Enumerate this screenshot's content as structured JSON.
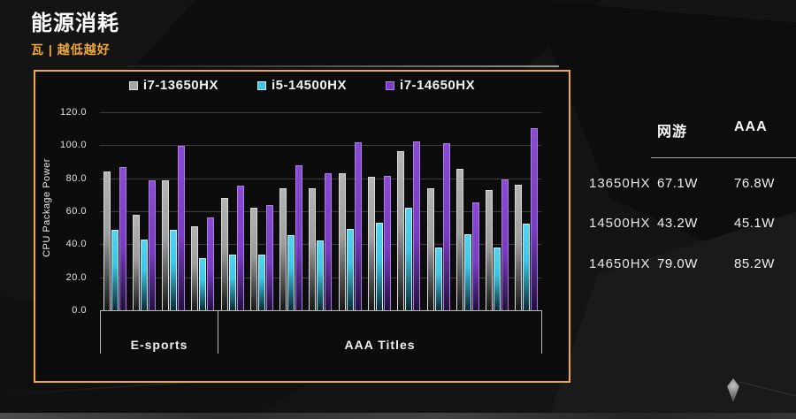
{
  "title": "能源消耗",
  "subtitle": "瓦 | 越低越好",
  "colors": {
    "accent_gold": "#EFA93C",
    "bar_gray": "#A6A6A6",
    "bar_cyan": "#3FC6E6",
    "bar_purple": "#7A3CC2",
    "panel_background": "#0C0C0C",
    "page_background": "#141414"
  },
  "chart_data": {
    "type": "bar",
    "title": "",
    "xlabel": "",
    "ylabel": "CPU Package Power",
    "ylim": [
      0,
      120
    ],
    "ytick_labels": [
      "120.0",
      "100.0",
      "80.0",
      "60.0",
      "40.0",
      "20.0",
      "0.0"
    ],
    "grid": true,
    "legend_position": "top",
    "sections": [
      {
        "label": "E-sports",
        "group_count": 4
      },
      {
        "label": "AAA Titles",
        "group_count": 11
      }
    ],
    "series": [
      {
        "name": "i7-13650HX",
        "color": "#A6A6A6",
        "values": [
          84,
          58,
          79,
          51,
          68,
          62,
          74,
          74,
          83,
          81,
          96.5,
          74,
          85.5,
          73,
          76
        ]
      },
      {
        "name": "i5-14500HX",
        "color": "#3FC6E6",
        "values": [
          48.5,
          43,
          48.5,
          31.5,
          34,
          34,
          45.5,
          42.5,
          49.5,
          53,
          62,
          38,
          46,
          38,
          52.5
        ]
      },
      {
        "name": "i7-14650HX",
        "color": "#7A3CC2",
        "values": [
          87,
          79,
          99.5,
          56,
          75.5,
          64,
          88,
          83,
          102,
          81.5,
          102.5,
          101,
          65.5,
          79.5,
          110.5
        ]
      }
    ]
  },
  "table": {
    "headers": [
      "网游",
      "AAA"
    ],
    "rows": [
      {
        "label": "13650HX",
        "values": [
          "67.1W",
          "76.8W"
        ]
      },
      {
        "label": "14500HX",
        "values": [
          "43.2W",
          "45.1W"
        ]
      },
      {
        "label": "14650HX",
        "values": [
          "79.0W",
          "85.2W"
        ]
      }
    ]
  }
}
